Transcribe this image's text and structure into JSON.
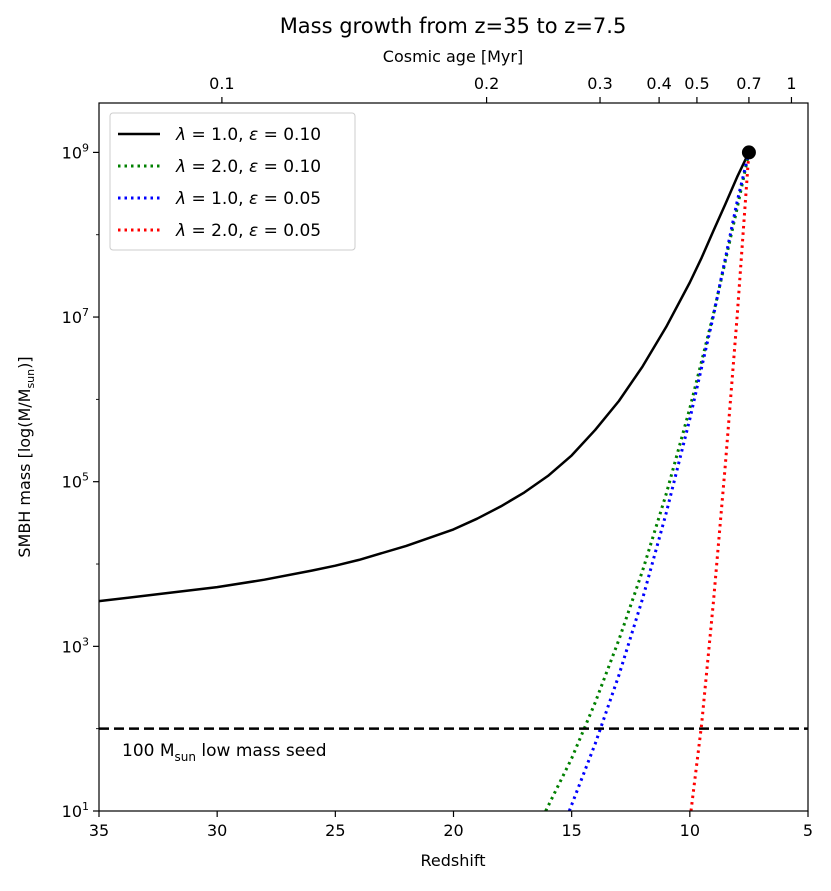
{
  "chart_data": {
    "type": "line",
    "title": "Mass growth from z=35 to z=7.5",
    "xlabel": "Redshift",
    "ylabel": "SMBH mass [log(M/M",
    "ylabel_sub": "sun",
    "ylabel_end": ")]",
    "xlim": [
      35,
      5
    ],
    "ylim_log10": [
      1,
      9.6
    ],
    "x_ticks": [
      35,
      30,
      25,
      20,
      15,
      10,
      5
    ],
    "x_tick_labels": [
      "35",
      "30",
      "25",
      "20",
      "15",
      "10",
      "5"
    ],
    "y_ticks_log10": [
      1,
      3,
      5,
      7,
      9
    ],
    "y_tick_labels": [
      {
        "base": "10",
        "exp": "1"
      },
      {
        "base": "10",
        "exp": "3"
      },
      {
        "base": "10",
        "exp": "5"
      },
      {
        "base": "10",
        "exp": "7"
      },
      {
        "base": "10",
        "exp": "9"
      }
    ],
    "top_axis": {
      "label": "Cosmic age [Myr]",
      "ticks": [
        {
          "label": "0.1",
          "z": 29.8
        },
        {
          "label": "0.2",
          "z": 18.6
        },
        {
          "label": "0.3",
          "z": 13.8
        },
        {
          "label": "0.4",
          "z": 11.3
        },
        {
          "label": "0.5",
          "z": 9.7
        },
        {
          "label": "0.7",
          "z": 7.5
        },
        {
          "label": "1",
          "z": 5.7
        }
      ]
    },
    "series": [
      {
        "name": "λ = 1.0, ε = 0.10",
        "legend": {
          "lam": "λ",
          "lam_val": " = 1.0, ",
          "eps": "ε",
          "eps_val": " = 0.10"
        },
        "color": "#000000",
        "style": "solid",
        "x": [
          35,
          32,
          30,
          28,
          26,
          25,
          24,
          22,
          20,
          19,
          18,
          17,
          16,
          15,
          14,
          13,
          12,
          11,
          10,
          9.5,
          9,
          8.5,
          8,
          7.5
        ],
        "y_log10": [
          3.55,
          3.65,
          3.72,
          3.81,
          3.92,
          3.98,
          4.05,
          4.22,
          4.42,
          4.55,
          4.7,
          4.87,
          5.07,
          5.32,
          5.63,
          5.98,
          6.4,
          6.88,
          7.42,
          7.72,
          8.05,
          8.37,
          8.7,
          9.0
        ]
      },
      {
        "name": "λ = 2.0, ε = 0.10",
        "legend": {
          "lam": "λ",
          "lam_val": " = 2.0, ",
          "eps": "ε",
          "eps_val": " = 0.10"
        },
        "color": "#008000",
        "style": "dotted",
        "x": [
          16.1,
          15,
          14,
          13,
          12,
          11,
          10,
          9,
          8,
          7.5
        ],
        "y_log10": [
          1.0,
          1.64,
          2.32,
          3.08,
          3.92,
          4.85,
          5.89,
          7.04,
          8.32,
          9.0
        ]
      },
      {
        "name": "λ = 1.0, ε = 0.05",
        "legend": {
          "lam": "λ",
          "lam_val": " = 1.0, ",
          "eps": "ε",
          "eps_val": " = 0.05"
        },
        "color": "#0000ff",
        "style": "dotted",
        "x": [
          15.1,
          14,
          13,
          12,
          11,
          10,
          9,
          8,
          7.5
        ],
        "y_log10": [
          1.0,
          1.82,
          2.65,
          3.58,
          4.62,
          5.76,
          7.02,
          8.4,
          9.0
        ]
      },
      {
        "name": "λ = 2.0, ε = 0.05",
        "legend": {
          "lam": "λ",
          "lam_val": " = 2.0, ",
          "eps": "ε",
          "eps_val": " = 0.05"
        },
        "color": "#ff0000",
        "style": "dotted",
        "x": [
          9.95,
          9.5,
          9,
          8.5,
          8,
          7.5
        ],
        "y_log10": [
          1.0,
          2.05,
          3.55,
          5.2,
          7.0,
          9.0
        ]
      }
    ],
    "seed_line": {
      "y_log10": 2.0,
      "color": "#000000",
      "style": "dashed",
      "label_main": "100 M",
      "label_sub": "sun",
      "label_rest": " low mass seed"
    },
    "endpoint": {
      "x": 7.5,
      "y_log10": 9.0,
      "color": "#000000"
    },
    "legend_position": "top-left"
  }
}
